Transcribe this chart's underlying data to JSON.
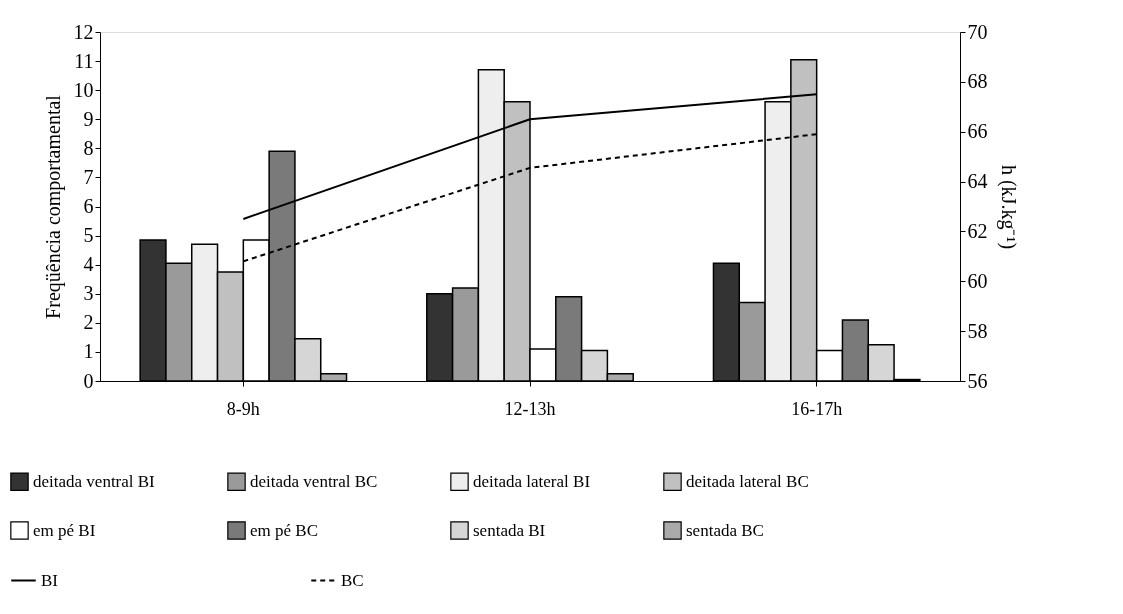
{
  "chart_data": {
    "type": "bar",
    "categories": [
      "8-9h",
      "12-13h",
      "16-17h"
    ],
    "ylabel": "Freqüência comportamental",
    "y2label": "h (kJ.kg⁻¹)",
    "ylim": [
      0,
      12
    ],
    "yticks": [
      0,
      1,
      2,
      3,
      4,
      5,
      6,
      7,
      8,
      9,
      10,
      11,
      12
    ],
    "y2lim": [
      56,
      70
    ],
    "y2ticks": [
      56,
      58,
      60,
      62,
      64,
      66,
      68,
      70
    ],
    "grid": false,
    "legend": "bottom",
    "series": [
      {
        "name": "deitada ventral BI",
        "color": "#333333",
        "values": [
          4.85,
          3.0,
          4.05
        ]
      },
      {
        "name": "deitada ventral BC",
        "color": "#9a9a9a",
        "values": [
          4.05,
          3.2,
          2.7
        ]
      },
      {
        "name": "deitada lateral BI",
        "color": "#eeeeee",
        "values": [
          4.7,
          10.7,
          9.6
        ]
      },
      {
        "name": "deitada lateral BC",
        "color": "#c0c0c0",
        "values": [
          3.75,
          9.6,
          11.05
        ]
      },
      {
        "name": "em pé BI",
        "color": "#ffffff",
        "values": [
          4.85,
          1.1,
          1.05
        ]
      },
      {
        "name": "em pé BC",
        "color": "#7a7a7a",
        "values": [
          7.9,
          2.9,
          2.1
        ]
      },
      {
        "name": "sentada BI",
        "color": "#d6d6d6",
        "values": [
          1.45,
          1.05,
          1.25
        ]
      },
      {
        "name": "sentada BC",
        "color": "#aaaaaa",
        "values": [
          0.25,
          0.25,
          0.05
        ]
      },
      {
        "name": "BI",
        "type": "line",
        "axis": "y2",
        "color": "#000000",
        "line_style": "solid",
        "values": [
          62.5,
          66.5,
          67.5
        ]
      },
      {
        "name": "BC",
        "type": "line",
        "axis": "y2",
        "color": "#000000",
        "line_style": "dashed",
        "values": [
          60.8,
          64.55,
          65.9
        ]
      }
    ]
  }
}
